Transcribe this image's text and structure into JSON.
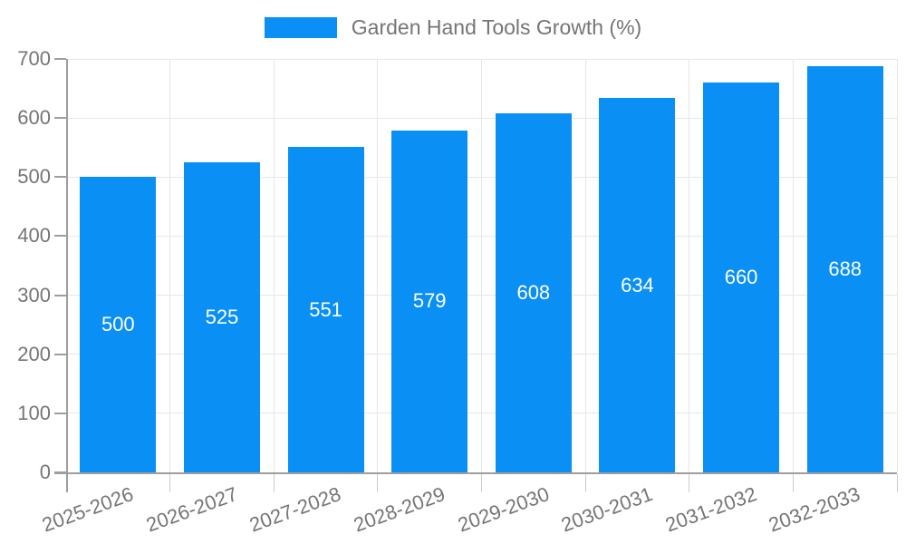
{
  "chart_data": {
    "type": "bar",
    "title": "Garden Hand Tools Growth (%)",
    "categories": [
      "2025-2026",
      "2026-2027",
      "2027-2028",
      "2028-2029",
      "2029-2030",
      "2030-2031",
      "2031-2032",
      "2032-2033"
    ],
    "values": [
      500,
      525,
      551,
      579,
      608,
      634,
      660,
      688
    ],
    "xlabel": "",
    "ylabel": "",
    "ylim": [
      0,
      700
    ],
    "yticks": [
      0,
      100,
      200,
      300,
      400,
      500,
      600,
      700
    ],
    "grid": true,
    "legend_position": "top",
    "colors": {
      "bar": "#0a8ff4",
      "bar_value_text": "#ffffff",
      "grid": "#e6e6e6",
      "axis": "#9e9e9e",
      "minor_tick": "#cccccc",
      "text": "#757575",
      "background": "#ffffff"
    }
  }
}
